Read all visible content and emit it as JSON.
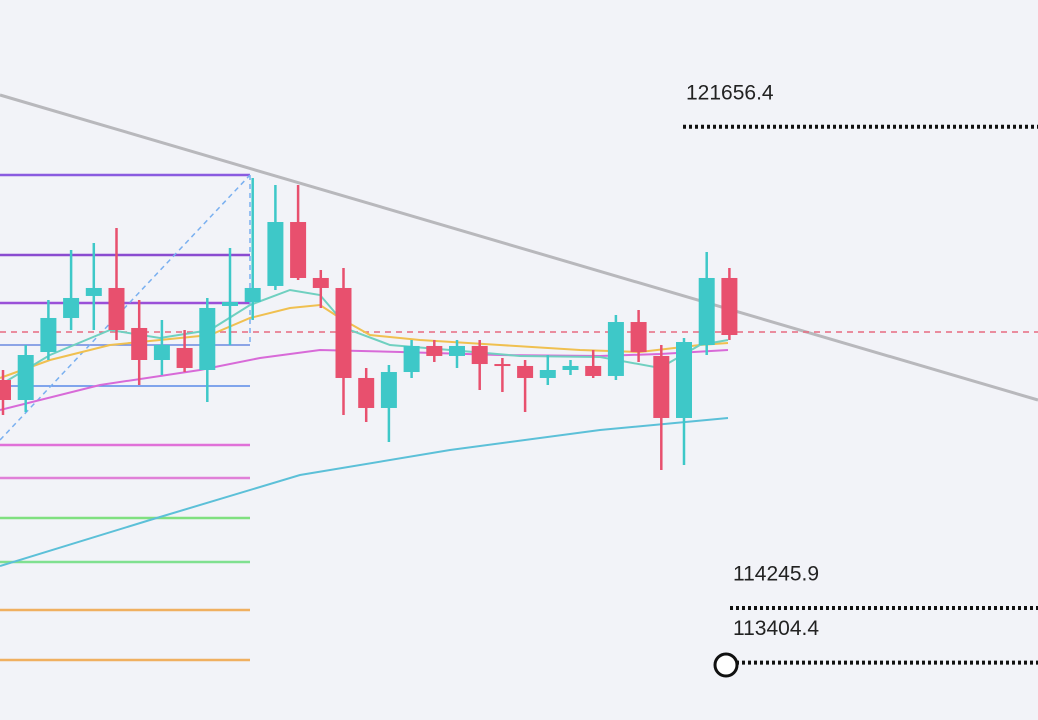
{
  "chart_data": {
    "type": "candlestick",
    "ylim": [
      112521,
      123609
    ],
    "colors": {
      "up": "#3ec8c8",
      "down": "#e8506e"
    },
    "open": [
      117757,
      117449,
      118188,
      118712,
      119051,
      119174,
      118558,
      118065,
      118250,
      117911,
      118897,
      118958,
      119205,
      120190,
      119328,
      119174,
      117788,
      117326,
      117880,
      118281,
      118127,
      118281,
      118003,
      117973,
      117788,
      117911,
      117973,
      117819,
      118650,
      118127,
      117172,
      118296,
      119328
    ],
    "high": [
      117911,
      118296,
      118989,
      119759,
      119867,
      120098,
      118989,
      118681,
      118527,
      119020,
      119790,
      120868,
      120760,
      120760,
      119451,
      119482,
      117942,
      117988,
      118373,
      118373,
      118373,
      118373,
      118096,
      118065,
      118142,
      118065,
      118219,
      118758,
      118835,
      118296,
      118404,
      119728,
      119482
    ],
    "low": [
      117218,
      117264,
      118065,
      118527,
      118527,
      118373,
      117680,
      117834,
      117880,
      117418,
      118296,
      118681,
      119143,
      119297,
      118866,
      117218,
      117110,
      116802,
      117788,
      118034,
      117942,
      117603,
      117572,
      117264,
      117680,
      117834,
      117788,
      117757,
      118034,
      116371,
      116448,
      118142,
      118373
    ],
    "close": [
      117449,
      118142,
      118712,
      119020,
      119174,
      118527,
      118065,
      118296,
      117942,
      118866,
      118958,
      119174,
      120190,
      119328,
      119174,
      117788,
      117326,
      117880,
      118281,
      118127,
      118281,
      118003,
      117973,
      117788,
      117911,
      117973,
      117819,
      118650,
      118188,
      117172,
      118342,
      119328,
      118450
    ],
    "price_levels": [
      121656.4,
      114245.9,
      113404.4
    ]
  }
}
